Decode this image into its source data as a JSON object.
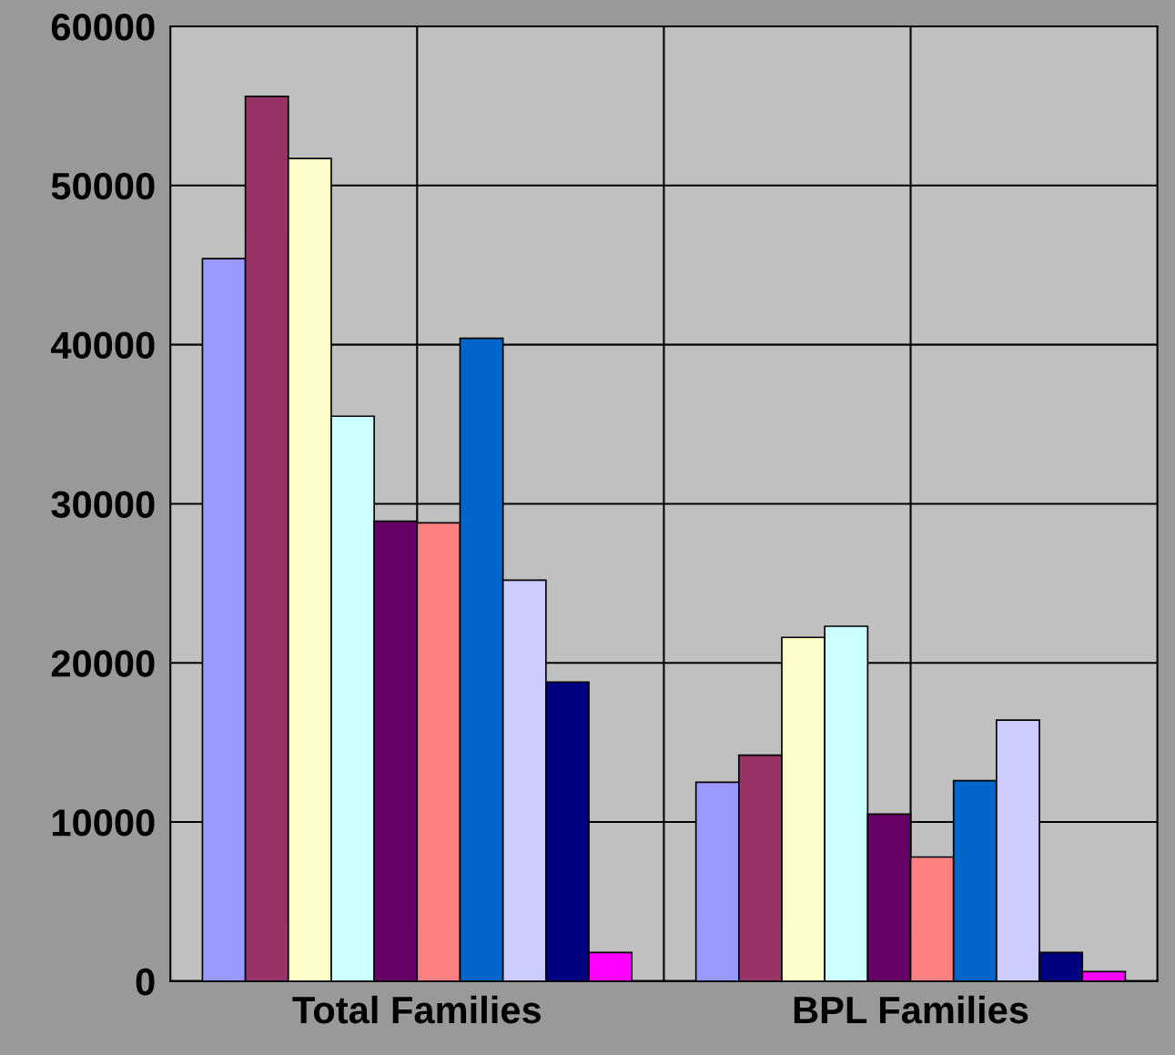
{
  "chart_data": {
    "type": "bar",
    "categories": [
      "Total Families",
      "BPL Families"
    ],
    "series": [
      {
        "color": "#9999ff",
        "values": [
          45400,
          12500
        ]
      },
      {
        "color": "#993366",
        "values": [
          55600,
          14200
        ]
      },
      {
        "color": "#ffffcc",
        "values": [
          51700,
          21600
        ]
      },
      {
        "color": "#ccffff",
        "values": [
          35500,
          22300
        ]
      },
      {
        "color": "#660066",
        "values": [
          28900,
          10500
        ]
      },
      {
        "color": "#ff8080",
        "values": [
          28800,
          7800
        ]
      },
      {
        "color": "#0066cc",
        "values": [
          40400,
          12600
        ]
      },
      {
        "color": "#ccccff",
        "values": [
          25200,
          16400
        ]
      },
      {
        "color": "#000080",
        "values": [
          18800,
          1800
        ]
      },
      {
        "color": "#ff00ff",
        "values": [
          1800,
          600
        ]
      }
    ],
    "ylim": [
      0,
      60000
    ],
    "yticks": [
      0,
      10000,
      20000,
      30000,
      40000,
      50000,
      60000
    ],
    "grid": true,
    "legend": false
  }
}
